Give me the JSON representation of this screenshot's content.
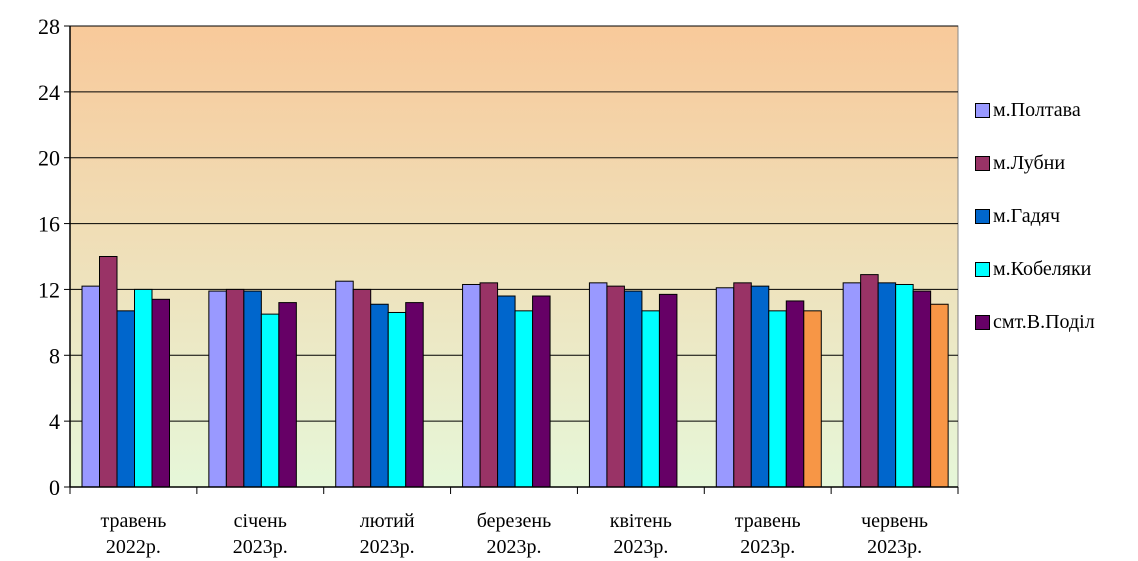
{
  "chart_data": {
    "type": "bar",
    "ylim": [
      0,
      28
    ],
    "y_ticks": [
      "0",
      "4",
      "8",
      "12",
      "16",
      "20",
      "24",
      "28"
    ],
    "grid": true,
    "legend_position": "right",
    "background_gradient": {
      "top": "#f8c99a",
      "bottom": "#e6f7d9"
    },
    "categories": [
      [
        "травень",
        "2022р."
      ],
      [
        "січень",
        "2023р."
      ],
      [
        "лютий",
        "2023р."
      ],
      [
        "березень",
        "2023р."
      ],
      [
        "квітень",
        "2023р."
      ],
      [
        "травень",
        "2023р."
      ],
      [
        "червень",
        "2023р."
      ]
    ],
    "series": [
      {
        "name": "м.Полтава",
        "color": "#9999ff",
        "values": [
          12.2,
          11.9,
          12.5,
          12.3,
          12.4,
          12.1,
          12.4
        ]
      },
      {
        "name": "м.Лубни",
        "color": "#993366",
        "values": [
          14.0,
          12.0,
          12.0,
          12.4,
          12.2,
          12.4,
          12.9
        ]
      },
      {
        "name": "м.Гадяч",
        "color": "#0066cc",
        "values": [
          10.7,
          11.9,
          11.1,
          11.6,
          11.9,
          12.2,
          12.4
        ]
      },
      {
        "name": "м.Кобеляки",
        "color": "#00ffff",
        "values": [
          12.0,
          10.5,
          10.6,
          10.7,
          10.7,
          10.7,
          12.3
        ]
      },
      {
        "name": "смт.В.Поділ",
        "color": "#660066",
        "values": [
          11.4,
          11.2,
          11.2,
          11.6,
          11.7,
          11.3,
          11.9
        ]
      },
      {
        "name": "",
        "color": "#f79646",
        "values": [
          null,
          null,
          null,
          null,
          null,
          10.7,
          11.1
        ]
      }
    ]
  }
}
